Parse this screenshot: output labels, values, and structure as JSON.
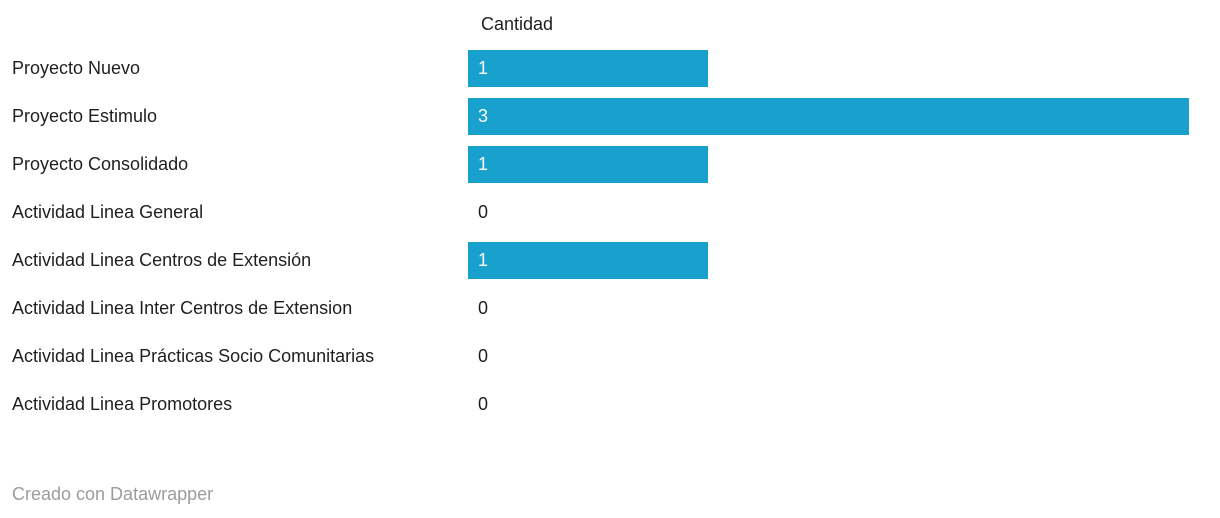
{
  "header": {
    "column_label": "Cantidad"
  },
  "footer": {
    "credit": "Creado con Datawrapper"
  },
  "colors": {
    "bar": "#18a1cd",
    "label_text": "#1f1f1f",
    "value_on_bar": "#ffffff",
    "credit_text": "#9c9c9c",
    "background": "#ffffff"
  },
  "chart_data": {
    "type": "bar",
    "orientation": "horizontal",
    "title": "",
    "column_header": "Cantidad",
    "categories": [
      "Proyecto Nuevo",
      "Proyecto Estimulo",
      "Proyecto Consolidado",
      "Actividad Linea General",
      "Actividad Linea Centros de Extensión",
      "Actividad Linea Inter Centros de Extension",
      "Actividad Linea Prácticas Socio Comunitarias",
      "Actividad Linea Promotores"
    ],
    "values": [
      1,
      3,
      1,
      0,
      1,
      0,
      0,
      0
    ],
    "xlim": [
      0,
      3
    ],
    "value_labels_shown": true,
    "grid": false,
    "legend": "none",
    "credit": "Creado con Datawrapper"
  }
}
